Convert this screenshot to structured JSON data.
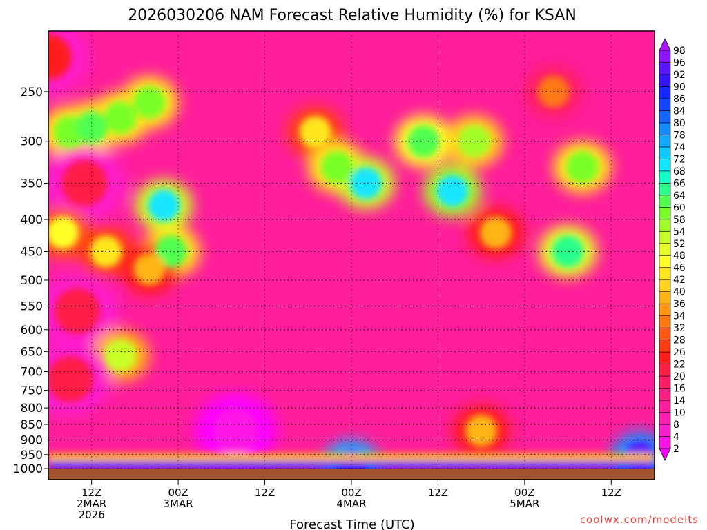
{
  "chart_data": {
    "type": "heatmap",
    "title": "2026030206 NAM Forecast Relative Humidity (%) for KSAN",
    "xlabel": "Forecast Time (UTC)",
    "ylabel": "",
    "y_scale": "log-pressure",
    "y_ticks": [
      250,
      300,
      350,
      400,
      450,
      500,
      550,
      600,
      650,
      700,
      750,
      800,
      850,
      900,
      950,
      1000
    ],
    "x_ticks": [
      {
        "hours": 6,
        "lines": [
          "12Z",
          "2MAR",
          "2026"
        ]
      },
      {
        "hours": 18,
        "lines": [
          "00Z",
          "3MAR"
        ]
      },
      {
        "hours": 30,
        "lines": [
          "12Z"
        ]
      },
      {
        "hours": 42,
        "lines": [
          "00Z",
          "4MAR"
        ]
      },
      {
        "hours": 54,
        "lines": [
          "12Z"
        ]
      },
      {
        "hours": 66,
        "lines": [
          "00Z",
          "5MAR"
        ]
      },
      {
        "hours": 78,
        "lines": [
          "12Z"
        ]
      }
    ],
    "xlim_hours": [
      0,
      84
    ],
    "ylim_hpa": [
      200,
      1000
    ],
    "grid": true,
    "colorbar": {
      "levels": [
        2,
        4,
        8,
        10,
        14,
        16,
        20,
        22,
        26,
        28,
        32,
        34,
        36,
        40,
        42,
        46,
        48,
        52,
        54,
        58,
        60,
        64,
        66,
        68,
        72,
        74,
        78,
        80,
        84,
        86,
        90,
        92,
        96,
        98
      ],
      "colors": [
        "#ff00ff",
        "#ff14e6",
        "#ff1ecc",
        "#ff1eb4",
        "#ff1e9b",
        "#ff1e82",
        "#ff1e64",
        "#ff1e46",
        "#ff1e1e",
        "#ff3c14",
        "#ff5a14",
        "#ff7814",
        "#ff9614",
        "#ffb414",
        "#ffd21e",
        "#ffe61e",
        "#ffff28",
        "#e6ff28",
        "#c8ff28",
        "#a0ff28",
        "#78ff28",
        "#50ff50",
        "#28ff8c",
        "#14ffc8",
        "#14e6ff",
        "#14c8ff",
        "#14aaff",
        "#148cff",
        "#1464ff",
        "#1446ff",
        "#1428ff",
        "#3214ff",
        "#5a14ff",
        "#8c14ff",
        "#aa14ff"
      ],
      "extend": "both"
    },
    "ground_color": "#a0522d",
    "fields": [
      {
        "t": 0,
        "p": 220,
        "rh": 24
      },
      {
        "t": 3,
        "p": 290,
        "rh": 60
      },
      {
        "t": 6,
        "p": 285,
        "rh": 62
      },
      {
        "t": 10,
        "p": 275,
        "rh": 60
      },
      {
        "t": 14,
        "p": 260,
        "rh": 60
      },
      {
        "t": 16,
        "p": 380,
        "rh": 70
      },
      {
        "t": 17,
        "p": 450,
        "rh": 62
      },
      {
        "t": 5,
        "p": 350,
        "rh": 22
      },
      {
        "t": 2,
        "p": 420,
        "rh": 48
      },
      {
        "t": 8,
        "p": 450,
        "rh": 44
      },
      {
        "t": 14,
        "p": 480,
        "rh": 40
      },
      {
        "t": 4,
        "p": 560,
        "rh": 22
      },
      {
        "t": 10,
        "p": 660,
        "rh": 54
      },
      {
        "t": 3,
        "p": 720,
        "rh": 22
      },
      {
        "t": 37,
        "p": 290,
        "rh": 44
      },
      {
        "t": 40,
        "p": 330,
        "rh": 60
      },
      {
        "t": 44,
        "p": 350,
        "rh": 70
      },
      {
        "t": 52,
        "p": 300,
        "rh": 64
      },
      {
        "t": 56,
        "p": 360,
        "rh": 72
      },
      {
        "t": 59,
        "p": 300,
        "rh": 58
      },
      {
        "t": 62,
        "p": 420,
        "rh": 40
      },
      {
        "t": 70,
        "p": 250,
        "rh": 34
      },
      {
        "t": 74,
        "p": 330,
        "rh": 60
      },
      {
        "t": 72,
        "p": 450,
        "rh": 66
      },
      {
        "t": 26,
        "p": 870,
        "rh": 4
      },
      {
        "t": 60,
        "p": 870,
        "rh": 40
      },
      {
        "t": 42,
        "p": 990,
        "rh": 92
      },
      {
        "t": 82,
        "p": 960,
        "rh": 96
      }
    ]
  },
  "credit": "coolwx.com/modelts"
}
